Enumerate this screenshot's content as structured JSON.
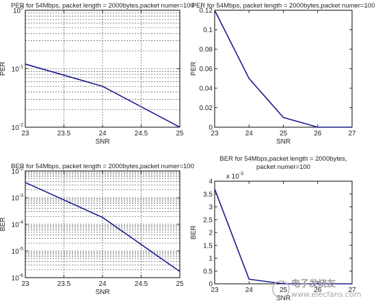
{
  "chart_data": [
    {
      "type": "line",
      "title": "PER for 54Mbps, packet length = 2000bytes,packet numer=100",
      "xlabel": "SNR",
      "ylabel": "PER",
      "xscale": "linear",
      "yscale": "log",
      "xlim": [
        23,
        25
      ],
      "ylim": [
        0.01,
        1
      ],
      "xticks": [
        23,
        23.5,
        24,
        24.5,
        25
      ],
      "xtick_labels": [
        "23",
        "23.5",
        "24",
        "24.5",
        "25"
      ],
      "ytick_decades": [
        -2,
        -1,
        0
      ],
      "ytick_labels": [
        {
          "base": "10",
          "exp": "-2"
        },
        {
          "base": "10",
          "exp": "-1"
        },
        {
          "base": "10",
          "exp": "0"
        }
      ],
      "grid": true,
      "series": [
        {
          "color": "#1a1a8c",
          "x": [
            23,
            24,
            25
          ],
          "y": [
            0.12,
            0.05,
            0.01
          ]
        }
      ]
    },
    {
      "type": "line",
      "title": "PER for 54Mbps, packet length = 2000bytes,packet numer=100",
      "xlabel": "SNR",
      "ylabel": "PER",
      "xscale": "linear",
      "yscale": "linear",
      "xlim": [
        23,
        27
      ],
      "ylim": [
        0,
        0.12
      ],
      "xticks": [
        23,
        24,
        25,
        26,
        27
      ],
      "xtick_labels": [
        "23",
        "24",
        "25",
        "26",
        "27"
      ],
      "yticks": [
        0,
        0.02,
        0.04,
        0.06,
        0.08,
        0.1,
        0.12
      ],
      "ytick_labels": [
        "0",
        "0.02",
        "0.04",
        "0.06",
        "0.08",
        "0.1",
        "0.12"
      ],
      "grid": false,
      "series": [
        {
          "color": "#1a1a8c",
          "x": [
            23,
            24,
            25,
            26,
            27
          ],
          "y": [
            0.12,
            0.05,
            0.01,
            0,
            0
          ]
        }
      ]
    },
    {
      "type": "line",
      "title": "BER for 54Mbps, packet length = 2000bytes,packet numer=100",
      "xlabel": "SNR",
      "ylabel": "BER",
      "xscale": "linear",
      "yscale": "log",
      "xlim": [
        23,
        25
      ],
      "ylim": [
        1e-06,
        0.01
      ],
      "xticks": [
        23,
        23.5,
        24,
        24.5,
        25
      ],
      "xtick_labels": [
        "23",
        "23.5",
        "24",
        "24.5",
        "25"
      ],
      "ytick_decades": [
        -6,
        -5,
        -4,
        -3,
        -2
      ],
      "ytick_labels": [
        {
          "base": "10",
          "exp": "-6"
        },
        {
          "base": "10",
          "exp": "-5"
        },
        {
          "base": "10",
          "exp": "-4"
        },
        {
          "base": "10",
          "exp": "-3"
        },
        {
          "base": "10",
          "exp": "-2"
        }
      ],
      "grid": true,
      "series": [
        {
          "color": "#1a1a8c",
          "x": [
            23,
            24,
            25
          ],
          "y": [
            0.0037,
            0.00018,
            1.7e-06
          ]
        }
      ]
    },
    {
      "type": "line",
      "title": "BER for 54Mbps,packet length = 2000bytes,",
      "title_line2": "packet numer=100",
      "xlabel": "SNR",
      "ylabel": "BER",
      "xscale": "linear",
      "yscale": "linear",
      "xlim": [
        23,
        27
      ],
      "ylim": [
        0,
        4
      ],
      "exponent_label": {
        "base": "x 10",
        "exp": "-3"
      },
      "xticks": [
        23,
        24,
        25,
        26,
        27
      ],
      "xtick_labels": [
        "23",
        "24",
        "25",
        "26",
        "27"
      ],
      "yticks": [
        0,
        0.5,
        1,
        1.5,
        2,
        2.5,
        3,
        3.5,
        4
      ],
      "ytick_labels": [
        "0",
        "0.5",
        "1",
        "1.5",
        "2",
        "2.5",
        "3",
        "3.5",
        "4"
      ],
      "grid": false,
      "series": [
        {
          "color": "#1a1a8c",
          "x": [
            23,
            24,
            25,
            26,
            27
          ],
          "y": [
            3.7,
            0.18,
            0.002,
            0,
            0
          ]
        }
      ]
    }
  ],
  "watermark": {
    "text": "电子发烧友",
    "url": "www.elecfans.com"
  }
}
